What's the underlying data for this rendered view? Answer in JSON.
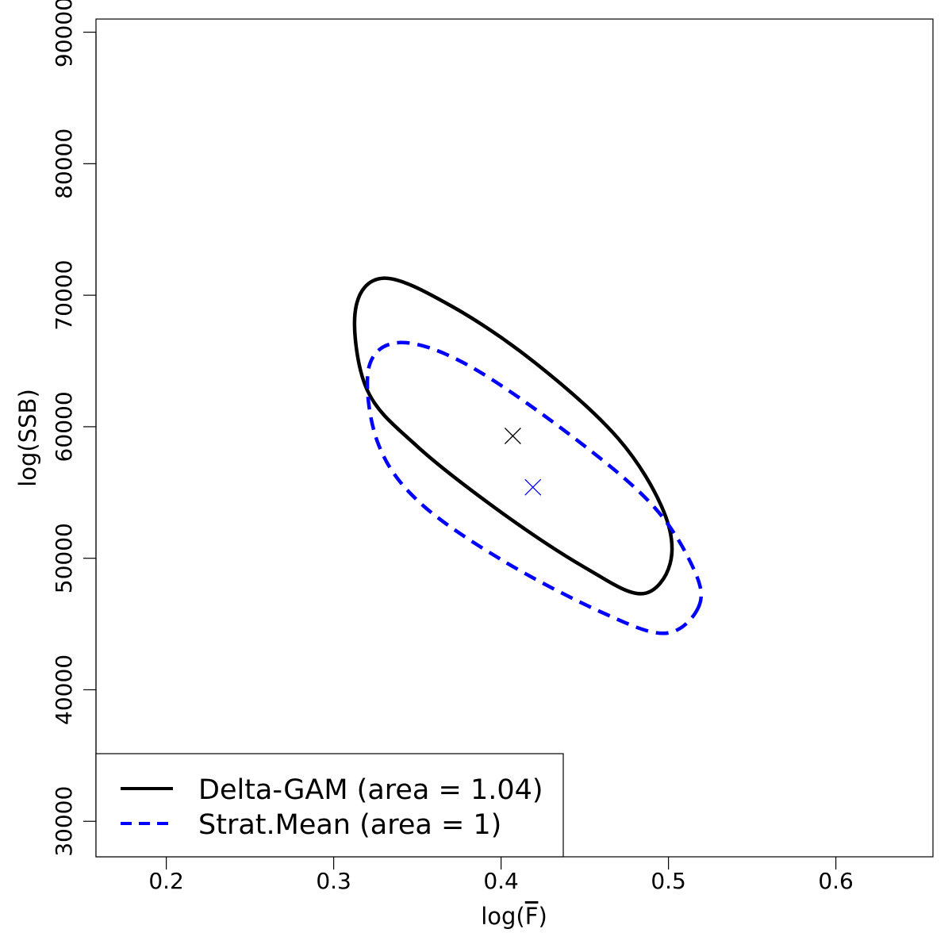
{
  "chart_data": {
    "type": "scatter",
    "xlabel": "log(",
    "xlabel_symbol": "F",
    "xlabel_close": ")",
    "ylabel": "log(SSB)",
    "xlim": [
      0.158,
      0.658
    ],
    "ylim": [
      27300,
      91000
    ],
    "x_ticks": [
      0.2,
      0.3,
      0.4,
      0.5,
      0.6
    ],
    "x_tick_labels": [
      "0.2",
      "0.3",
      "0.4",
      "0.5",
      "0.6"
    ],
    "y_ticks": [
      30000,
      40000,
      50000,
      60000,
      70000,
      80000,
      90000
    ],
    "y_tick_labels": [
      "30000",
      "40000",
      "50000",
      "60000",
      "70000",
      "80000",
      "90000"
    ],
    "grid": false,
    "legend_position": "bottom-left",
    "series": [
      {
        "name": "Delta-GAM (area = 1.04)",
        "color": "#000000",
        "style": "solid",
        "center": {
          "x": 0.407,
          "y": 59300
        },
        "ellipse": [
          {
            "x": 0.501,
            "y": 49600
          },
          {
            "x": 0.484,
            "y": 47300
          },
          {
            "x": 0.45,
            "y": 49300
          },
          {
            "x": 0.4,
            "y": 53500
          },
          {
            "x": 0.35,
            "y": 58500
          },
          {
            "x": 0.32,
            "y": 62800
          },
          {
            "x": 0.313,
            "y": 68900
          },
          {
            "x": 0.33,
            "y": 71300
          },
          {
            "x": 0.37,
            "y": 69200
          },
          {
            "x": 0.42,
            "y": 64900
          },
          {
            "x": 0.47,
            "y": 59100
          },
          {
            "x": 0.497,
            "y": 53600
          }
        ]
      },
      {
        "name": "Strat.Mean (area = 1)",
        "color": "#0000ff",
        "style": "dashed",
        "center": {
          "x": 0.419,
          "y": 55400
        },
        "ellipse": [
          {
            "x": 0.518,
            "y": 46300
          },
          {
            "x": 0.498,
            "y": 44300
          },
          {
            "x": 0.46,
            "y": 45900
          },
          {
            "x": 0.4,
            "y": 49900
          },
          {
            "x": 0.35,
            "y": 54400
          },
          {
            "x": 0.326,
            "y": 58900
          },
          {
            "x": 0.321,
            "y": 64500
          },
          {
            "x": 0.34,
            "y": 66400
          },
          {
            "x": 0.38,
            "y": 64700
          },
          {
            "x": 0.44,
            "y": 59500
          },
          {
            "x": 0.49,
            "y": 54100
          },
          {
            "x": 0.515,
            "y": 49200
          }
        ]
      }
    ]
  }
}
